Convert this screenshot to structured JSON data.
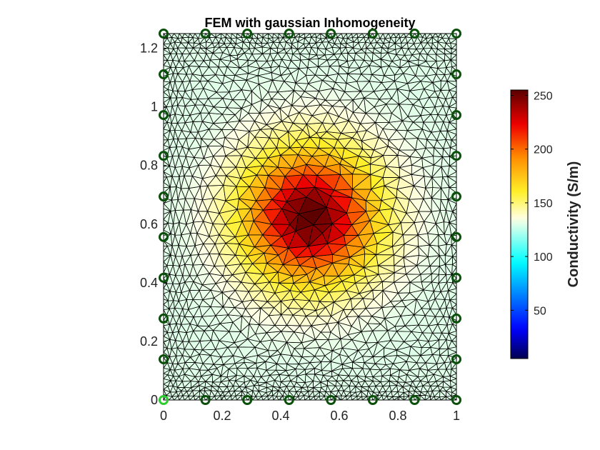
{
  "chart_data": {
    "type": "heatmap",
    "title": "FEM with gaussian Inhomogeneity",
    "xlabel": "",
    "ylabel": "",
    "xlim": [
      0,
      1
    ],
    "ylim": [
      0,
      1.25
    ],
    "x_ticks": [
      {
        "value": 0,
        "label": "0"
      },
      {
        "value": 0.2,
        "label": "0.2"
      },
      {
        "value": 0.4,
        "label": "0.4"
      },
      {
        "value": 0.6,
        "label": "0.6"
      },
      {
        "value": 0.8,
        "label": "0.8"
      },
      {
        "value": 1,
        "label": "1"
      }
    ],
    "y_ticks": [
      {
        "value": 0,
        "label": "0"
      },
      {
        "value": 0.2,
        "label": "0.2"
      },
      {
        "value": 0.4,
        "label": "0.4"
      },
      {
        "value": 0.6,
        "label": "0.6"
      },
      {
        "value": 0.8,
        "label": "0.8"
      },
      {
        "value": 1,
        "label": "1"
      },
      {
        "value": 1.2,
        "label": "1.2"
      }
    ],
    "field": {
      "description": "gaussian inhomogeneity of conductivity on a triangular FEM mesh",
      "center": [
        0.5,
        0.625
      ],
      "peak": 255,
      "background": 130,
      "sigma": 0.15,
      "mesh_spacing_interior": 0.045,
      "mesh_refined_near_boundary": true
    },
    "electrodes": {
      "color": "#0a4f0a",
      "reference_color": "#2ecc2e",
      "reference": [
        0,
        0
      ],
      "points": [
        [
          0,
          0
        ],
        [
          0.1429,
          0
        ],
        [
          0.2857,
          0
        ],
        [
          0.4286,
          0
        ],
        [
          0.5714,
          0
        ],
        [
          0.7143,
          0
        ],
        [
          0.8571,
          0
        ],
        [
          1,
          0
        ],
        [
          1,
          0.139
        ],
        [
          1,
          0.278
        ],
        [
          1,
          0.417
        ],
        [
          1,
          0.556
        ],
        [
          1,
          0.694
        ],
        [
          1,
          0.833
        ],
        [
          1,
          0.972
        ],
        [
          1,
          1.111
        ],
        [
          1,
          1.25
        ],
        [
          0.8571,
          1.25
        ],
        [
          0.7143,
          1.25
        ],
        [
          0.5714,
          1.25
        ],
        [
          0.4286,
          1.25
        ],
        [
          0.2857,
          1.25
        ],
        [
          0.1429,
          1.25
        ],
        [
          0,
          1.25
        ],
        [
          0,
          1.111
        ],
        [
          0,
          0.972
        ],
        [
          0,
          0.833
        ],
        [
          0,
          0.694
        ],
        [
          0,
          0.556
        ],
        [
          0,
          0.417
        ],
        [
          0,
          0.278
        ],
        [
          0,
          0.139
        ]
      ]
    },
    "colorbar": {
      "label": "Conductivity (S/m)",
      "colormap": "jet-like",
      "clim": [
        5,
        255
      ],
      "ticks": [
        {
          "value": 50,
          "label": "50"
        },
        {
          "value": 100,
          "label": "100"
        },
        {
          "value": 150,
          "label": "150"
        },
        {
          "value": 200,
          "label": "200"
        },
        {
          "value": 250,
          "label": "250"
        }
      ]
    },
    "grid": false,
    "legend": "none"
  }
}
